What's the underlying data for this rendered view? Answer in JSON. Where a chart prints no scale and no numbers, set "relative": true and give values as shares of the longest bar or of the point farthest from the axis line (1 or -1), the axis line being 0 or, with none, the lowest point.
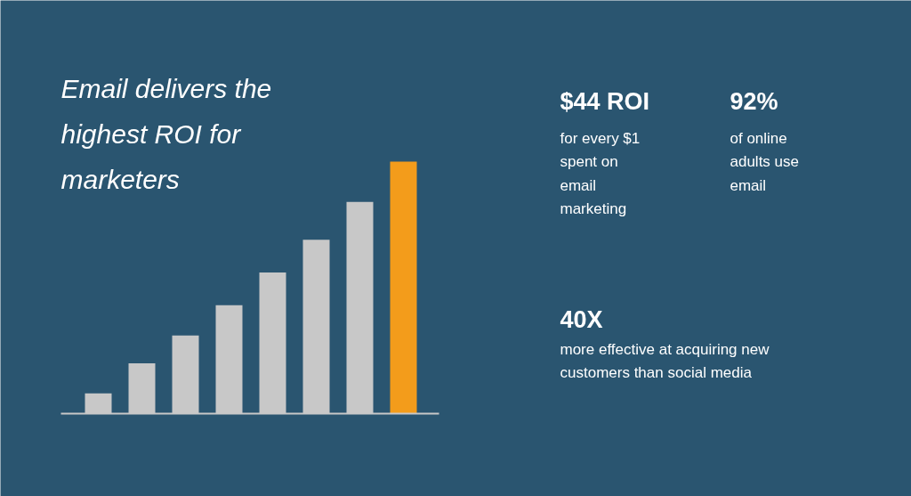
{
  "chart_data": {
    "type": "bar",
    "relative": true,
    "title": "Email delivers the highest ROI for marketers",
    "categories": [
      null,
      null,
      null,
      null,
      null,
      null,
      null,
      null
    ],
    "values": [
      0.08,
      0.2,
      0.31,
      0.43,
      0.56,
      0.69,
      0.84,
      1.0
    ],
    "colors": [
      "#c8c8c8",
      "#c8c8c8",
      "#c8c8c8",
      "#c8c8c8",
      "#c8c8c8",
      "#c8c8c8",
      "#c8c8c8",
      "#f39c1b"
    ],
    "annotations": [
      "$44 ROI",
      "for every $1 spent on email marketing",
      "92%",
      "of online adults use email",
      "40X",
      "more effective at acquiring new customers than social media"
    ],
    "grid": false
  }
}
